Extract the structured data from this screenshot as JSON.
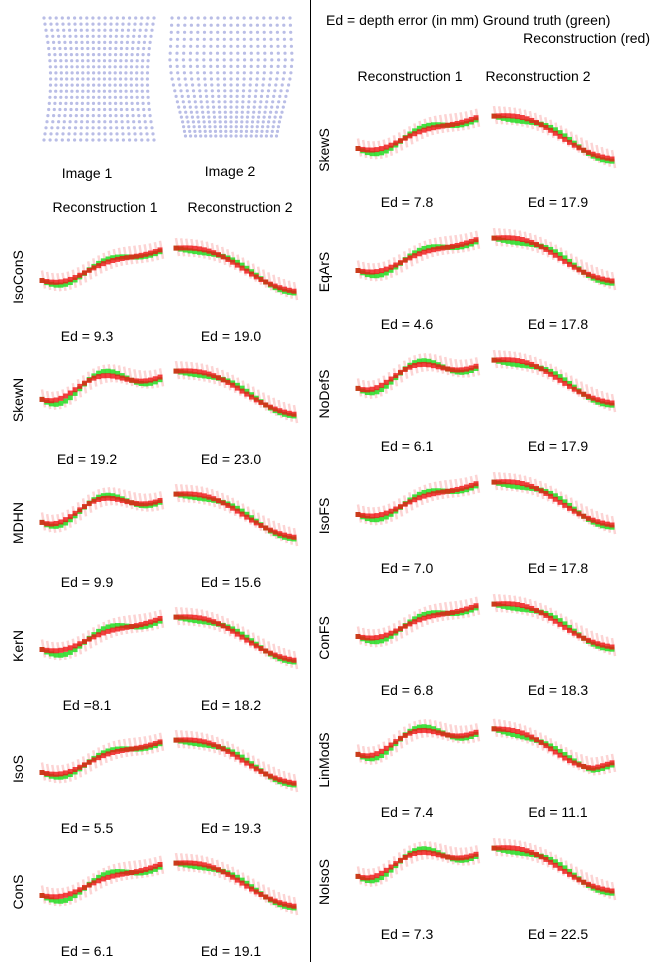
{
  "header": {
    "legend_line1": "Ed = depth error (in mm) Ground truth (green)",
    "legend_line2": "Reconstruction (red)"
  },
  "colors": {
    "ground_truth": "#22dd22",
    "reconstruction": "#ee1111",
    "grid_dots": "#b9bde6"
  },
  "images": {
    "image1": "Image 1",
    "image2": "Image 2"
  },
  "left": {
    "col1": "Reconstruction 1",
    "col2": "Reconstruction 2",
    "rows": [
      {
        "method": "IsoConS",
        "ed1": "Ed = 9.3",
        "ed2": "Ed = 19.0"
      },
      {
        "method": "SkewN",
        "ed1": "Ed = 19.2",
        "ed2": "Ed = 23.0"
      },
      {
        "method": "MDHN",
        "ed1": "Ed = 9.9",
        "ed2": "Ed = 15.6"
      },
      {
        "method": "KerN",
        "ed1": "Ed =8.1",
        "ed2": "Ed = 18.2"
      },
      {
        "method": "IsoS",
        "ed1": "Ed = 5.5",
        "ed2": "Ed = 19.3"
      },
      {
        "method": "ConS",
        "ed1": "Ed = 6.1",
        "ed2": "Ed = 19.1"
      }
    ]
  },
  "right": {
    "col1": "Reconstruction 1",
    "col2": "Reconstruction 2",
    "rows": [
      {
        "method": "SkewS",
        "ed1": "Ed = 7.8",
        "ed2": "Ed = 17.9"
      },
      {
        "method": "EqArS",
        "ed1": "Ed = 4.6",
        "ed2": "Ed = 17.8"
      },
      {
        "method": "NoDefS",
        "ed1": "Ed = 6.1",
        "ed2": "Ed = 17.9"
      },
      {
        "method": "IsoFS",
        "ed1": "Ed = 7.0",
        "ed2": "Ed = 17.8"
      },
      {
        "method": "ConFS",
        "ed1": "Ed = 6.8",
        "ed2": "Ed = 18.3"
      },
      {
        "method": "LinModS",
        "ed1": "Ed = 7.4",
        "ed2": "Ed = 11.1"
      },
      {
        "method": "NoIsoS",
        "ed1": "Ed = 7.3",
        "ed2": "Ed = 22.5"
      }
    ]
  }
}
